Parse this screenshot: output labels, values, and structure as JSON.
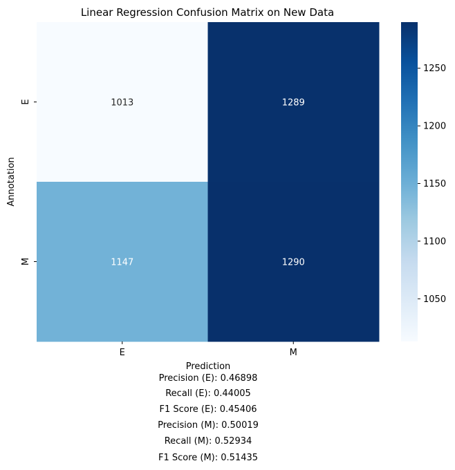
{
  "chart_data": {
    "type": "heatmap",
    "title": "Linear Regression Confusion Matrix on New Data",
    "xlabel": "Prediction",
    "ylabel": "Annotation",
    "x_categories": [
      "E",
      "M"
    ],
    "y_categories": [
      "E",
      "M"
    ],
    "values": [
      [
        1013,
        1289
      ],
      [
        1147,
        1290
      ]
    ],
    "colormap": "Blues",
    "colorbar": {
      "min": 1013,
      "max": 1290,
      "ticks": [
        1050,
        1100,
        1150,
        1200,
        1250
      ]
    },
    "colors": {
      "low": "#f7fbff",
      "high": "#08306b",
      "text_dark": "#262626",
      "text_light": "#ffffff"
    }
  },
  "metrics": [
    "Precision (E): 0.46898",
    "Recall (E): 0.44005",
    "F1 Score (E): 0.45406",
    "Precision (M): 0.50019",
    "Recall (M): 0.52934",
    "F1 Score (M): 0.51435"
  ]
}
